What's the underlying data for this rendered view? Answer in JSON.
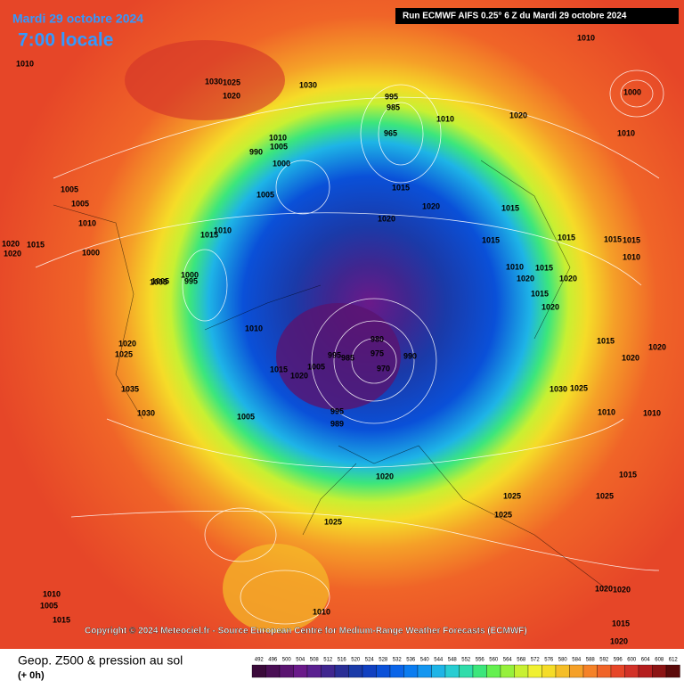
{
  "header": {
    "date": "Mardi 29 octobre 2024",
    "time": "7:00 locale",
    "run": "Run ECMWF AIFS 0.25° 6 Z du Mardi 29 octobre 2024"
  },
  "copyright": "Copyright © 2024 Meteociel.fr - Source European Centre for Medium-Range Weather Forecasts (ECMWF)",
  "footer": {
    "title": "Geop. Z500 & pression au sol",
    "step": "(+ 0h)"
  },
  "scale": {
    "values": [
      492,
      496,
      500,
      504,
      508,
      512,
      516,
      520,
      524,
      528,
      532,
      536,
      540,
      544,
      548,
      552,
      556,
      560,
      564,
      568,
      572,
      576,
      580,
      584,
      588,
      592,
      596,
      600,
      604,
      608,
      612
    ],
    "colors": [
      "#3a0a3a",
      "#4a0f55",
      "#5a1470",
      "#6a1a8a",
      "#5a2090",
      "#40268f",
      "#2a2e96",
      "#1a3aa8",
      "#1040c0",
      "#0a50d8",
      "#0a64e8",
      "#0a7cf0",
      "#1496f0",
      "#1eb4e6",
      "#28cdd2",
      "#30dcaa",
      "#3ce67c",
      "#64f050",
      "#96f03c",
      "#c8f032",
      "#f0f032",
      "#f5dc28",
      "#f5be28",
      "#f5a028",
      "#f58228",
      "#f06428",
      "#e64628",
      "#d23228",
      "#b41e1e",
      "#8c1414",
      "#5a0a0a"
    ]
  },
  "isobar_labels": [
    1010,
    1010,
    1030,
    1025,
    1020,
    1030,
    995,
    985,
    965,
    1010,
    1020,
    1010,
    1000,
    1010,
    1005,
    990,
    1000,
    1005,
    1015,
    1020,
    1020,
    1015,
    1005,
    1005,
    1010,
    1000,
    1020,
    1015,
    1020,
    1015,
    1015,
    1010,
    1015,
    1010,
    1005,
    1000,
    995,
    1005,
    1020,
    1015,
    1015,
    1010,
    1020,
    980,
    975,
    970,
    990,
    995,
    985,
    1015,
    1020,
    1005,
    1020,
    1025,
    1035,
    1030,
    995,
    989,
    1005,
    1020,
    1025,
    1025,
    1025,
    1030,
    1015,
    1010,
    1025,
    1015,
    1015,
    1020,
    1010,
    1015,
    1010,
    1010,
    1005,
    1015,
    1020,
    1020,
    1010,
    1015,
    1020,
    1025,
    1020,
    1020
  ]
}
